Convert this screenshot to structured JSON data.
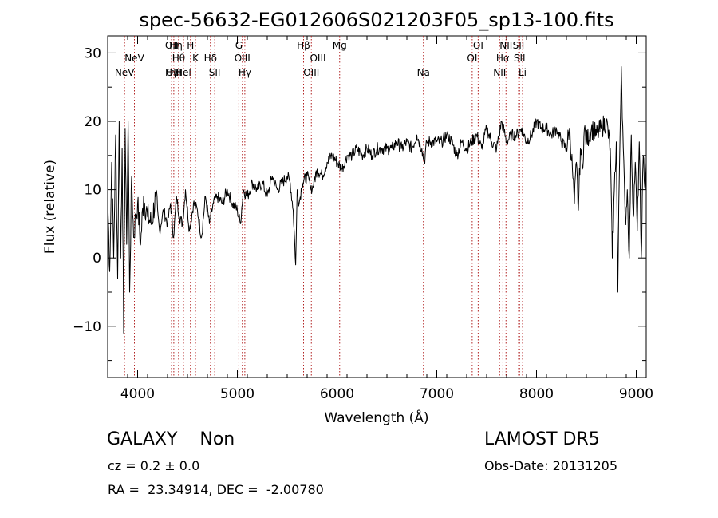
{
  "chart_data": {
    "type": "line",
    "title": "spec-56632-EG012606S021203F05_sp13-100.fits",
    "xlabel": "Wavelength (Å)",
    "ylabel": "Flux (relative)",
    "xlim": [
      3700,
      9100
    ],
    "ylim": [
      -17.5,
      32.5
    ],
    "xticks": [
      4000,
      5000,
      6000,
      7000,
      8000,
      9000
    ],
    "yticks": [
      -10,
      0,
      10,
      20,
      30
    ],
    "ytick_labels": [
      "−10",
      "0",
      "10",
      "20",
      "30"
    ],
    "grid": false,
    "line_color": "#000000",
    "marker_color": "#b22222",
    "lines": [
      {
        "wave": 3869,
        "label": "NeV",
        "row": 3
      },
      {
        "wave": 3968,
        "label": "NeV",
        "row": 2
      },
      {
        "wave": 4340,
        "label": "Hγ",
        "row": 4
      },
      {
        "wave": 4341,
        "label": "OII",
        "row": 1
      },
      {
        "wave": 4363,
        "label": "OIII",
        "row": 3
      },
      {
        "wave": 4384,
        "label": "Hη",
        "row": 1
      },
      {
        "wave": 4411,
        "label": "Hθ",
        "row": 2
      },
      {
        "wave": 4460,
        "label": "HeI",
        "row": 3
      },
      {
        "wave": 4530,
        "label": "H",
        "row": 1
      },
      {
        "wave": 4580,
        "label": "K",
        "row": 2
      },
      {
        "wave": 4730,
        "label": "Hδ",
        "row": 2
      },
      {
        "wave": 4773,
        "label": "SII",
        "row": 3
      },
      {
        "wave": 5015,
        "label": "G",
        "row": 1
      },
      {
        "wave": 5050,
        "label": "OIII",
        "row": 2
      },
      {
        "wave": 5075,
        "label": "Hγ",
        "row": 3
      },
      {
        "wave": 5664,
        "label": "Hβ",
        "row": 1
      },
      {
        "wave": 5742,
        "label": "OIII",
        "row": 3
      },
      {
        "wave": 5808,
        "label": "OIII",
        "row": 2
      },
      {
        "wave": 6026,
        "label": "Mg",
        "row": 1
      },
      {
        "wave": 6866,
        "label": "Na",
        "row": 3
      },
      {
        "wave": 7355,
        "label": "OI",
        "row": 2
      },
      {
        "wave": 7415,
        "label": "OI",
        "row": 1
      },
      {
        "wave": 7630,
        "label": "NII",
        "row": 3
      },
      {
        "wave": 7663,
        "label": "Hα",
        "row": 2
      },
      {
        "wave": 7694,
        "label": "NII",
        "row": 1
      },
      {
        "wave": 7820,
        "label": "SII",
        "row": 1
      },
      {
        "wave": 7830,
        "label": "SII",
        "row": 2
      },
      {
        "wave": 7860,
        "label": "Li",
        "row": 3
      }
    ],
    "spectrum": {
      "wave": [
        3700,
        3720,
        3740,
        3760,
        3780,
        3800,
        3815,
        3830,
        3845,
        3860,
        3875,
        3890,
        3905,
        3920,
        3940,
        3960,
        3980,
        4000,
        4030,
        4060,
        4100,
        4140,
        4180,
        4220,
        4260,
        4300,
        4330,
        4360,
        4390,
        4420,
        4450,
        4480,
        4520,
        4560,
        4600,
        4640,
        4680,
        4720,
        4760,
        4800,
        4850,
        4900,
        4950,
        5000,
        5030,
        5060,
        5100,
        5150,
        5200,
        5250,
        5300,
        5350,
        5400,
        5450,
        5500,
        5530,
        5560,
        5585,
        5600,
        5620,
        5650,
        5700,
        5750,
        5800,
        5850,
        5900,
        5950,
        6000,
        6050,
        6100,
        6150,
        6200,
        6250,
        6300,
        6350,
        6400,
        6450,
        6500,
        6550,
        6600,
        6650,
        6700,
        6750,
        6800,
        6850,
        6875,
        6900,
        6950,
        7000,
        7050,
        7100,
        7150,
        7200,
        7250,
        7300,
        7350,
        7400,
        7450,
        7500,
        7550,
        7600,
        7650,
        7700,
        7750,
        7800,
        7850,
        7900,
        7950,
        8000,
        8050,
        8100,
        8150,
        8200,
        8250,
        8300,
        8330,
        8360,
        8380,
        8400,
        8420,
        8440,
        8460,
        8480,
        8500,
        8550,
        8600,
        8650,
        8700,
        8740,
        8760,
        8780,
        8800,
        8815,
        8830,
        8850,
        8870,
        8890,
        8910,
        8930,
        8950,
        8970,
        8990,
        9010,
        9030,
        9050,
        9070,
        9090,
        9100
      ],
      "flux": [
        9,
        -2,
        14,
        0,
        18,
        -3,
        20,
        0,
        16,
        -11,
        19,
        2,
        20,
        -5,
        12,
        3,
        6,
        8,
        2,
        9,
        6,
        5,
        9,
        4,
        7,
        5,
        8,
        3,
        9,
        6,
        5,
        10,
        4,
        8,
        7,
        3,
        9,
        5,
        8,
        9,
        8,
        10,
        8,
        7,
        5,
        10,
        9,
        11,
        10,
        11,
        9,
        12,
        10,
        11,
        12,
        11,
        7,
        -1,
        10,
        8,
        11,
        12,
        10,
        13,
        12,
        14,
        15,
        14,
        13,
        15,
        15,
        16,
        15,
        16,
        15,
        16,
        16,
        16,
        16,
        17,
        16,
        17,
        16,
        18,
        16,
        14,
        17,
        17,
        17,
        17,
        18,
        17,
        15,
        17,
        16,
        17,
        18,
        16,
        19,
        17,
        16,
        20,
        17,
        18,
        18,
        19,
        17,
        18,
        20,
        19,
        19,
        18,
        19,
        17,
        16,
        19,
        13,
        8,
        14,
        7,
        16,
        13,
        19,
        17,
        19,
        18,
        19,
        20,
        16,
        0,
        10,
        17,
        -5,
        12,
        28,
        16,
        5,
        10,
        0,
        18,
        6,
        14,
        4,
        17,
        0,
        15,
        10,
        14
      ]
    }
  },
  "info": {
    "class_line": "GALAXY    Non",
    "survey": "LAMOST DR5",
    "cz_line": "cz = 0.2 ± 0.0",
    "obs_date": "Obs-Date: 20131205",
    "radec_line": "RA =  23.34914, DEC =  -2.00780"
  }
}
